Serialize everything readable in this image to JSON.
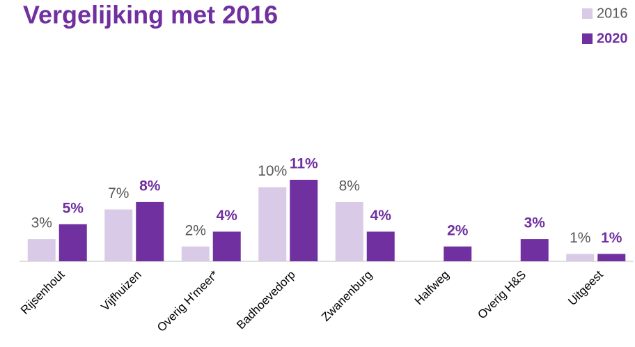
{
  "chart_data": {
    "type": "bar",
    "title": "Vergelijking met 2016",
    "categories": [
      "Rijsenhout",
      "Vijfhuizen",
      "Overig H'meer*",
      "Badhoevedorp",
      "Zwanenburg",
      "Halfweg",
      "Overig H&S",
      "Uitgeest"
    ],
    "series": [
      {
        "name": "2016",
        "color": "#d9cbe7",
        "values": [
          3,
          7,
          2,
          10,
          8,
          null,
          null,
          1
        ],
        "value_labels": [
          "3%",
          "7%",
          "2%",
          "10%",
          "8%",
          null,
          null,
          "1%"
        ]
      },
      {
        "name": "2020",
        "color": "#7030a0",
        "values": [
          5,
          8,
          4,
          11,
          4,
          2,
          3,
          1
        ],
        "value_labels": [
          "5%",
          "8%",
          "4%",
          "11%",
          "4%",
          "2%",
          "3%",
          "1%"
        ]
      }
    ],
    "legend": "top-right"
  }
}
